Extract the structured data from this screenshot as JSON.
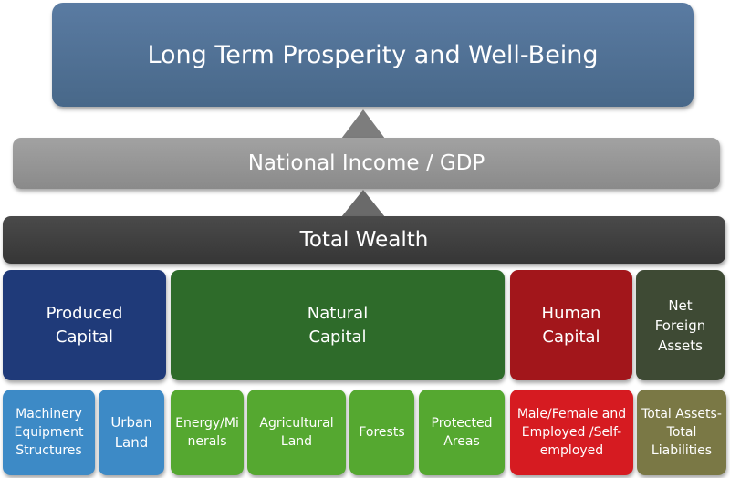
{
  "top": {
    "label": "Long Term Prosperity and Well-Being"
  },
  "income": {
    "label": "National Income / GDP"
  },
  "wealth": {
    "label": "Total Wealth"
  },
  "categories": {
    "produced": {
      "line1": "Produced",
      "line2": "Capital"
    },
    "natural": {
      "line1": "Natural",
      "line2": "Capital"
    },
    "human": {
      "line1": "Human",
      "line2": "Capital"
    },
    "net_foreign": {
      "line1": "Net",
      "line2": "Foreign",
      "line3": "Assets"
    }
  },
  "components": {
    "machinery": {
      "line1": "Machinery",
      "line2": "Equipment",
      "line3": "Structures"
    },
    "urban_land": {
      "line1": "Urban",
      "line2": "Land"
    },
    "energy": {
      "line1": "Energy/Mi",
      "line2": "nerals"
    },
    "agricultural": {
      "line1": "Agricultural",
      "line2": "Land"
    },
    "forests": {
      "line1": "Forests"
    },
    "protected": {
      "line1": "Protected",
      "line2": "Areas"
    },
    "labor": {
      "line1": "Male/Female and",
      "line2": "Employed /Self-",
      "line3": "employed"
    },
    "assets": {
      "line1": "Total Assets-",
      "line2": "Total",
      "line3": "Liabilities"
    }
  },
  "colors": {
    "top": "#4f7096",
    "income": "#959595",
    "wealth": "#404040",
    "produced": "#1f3a79",
    "natural": "#2e6b2a",
    "human": "#a2161b",
    "net_foreign": "#3e4a34",
    "produced_sub": "#3d8ac6",
    "natural_sub": "#55a830",
    "human_sub": "#d61b21",
    "net_sub": "#7a7845"
  }
}
